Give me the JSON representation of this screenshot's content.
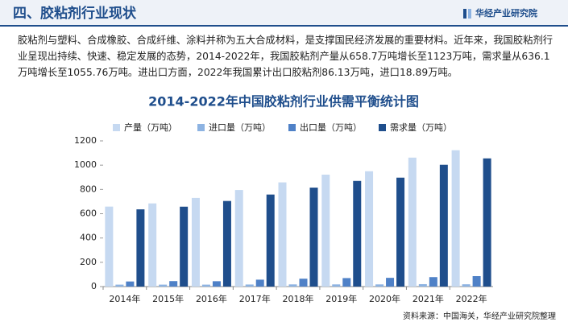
{
  "header": {
    "title": "四、胶粘剂行业现状",
    "logo": "华经产业研究院"
  },
  "paragraph": "胶粘剂与塑料、合成橡胶、合成纤维、涂料并称为五大合成材料，是支撑国民经济发展的重要材料。近年来，我国胶粘剂行业呈现出持续、快速、稳定发展的态势，2014-2022年，我国胶粘剂产量从658.7万吨增长至1123万吨，需求量从636.1万吨增长至1055.76万吨。进出口方面，2022年我国累计出口胶粘剂86.13万吨，进口18.89万吨。",
  "chart_data": {
    "type": "bar",
    "title": "2014-2022年中国胶粘剂行业供需平衡统计图",
    "categories": [
      "2014年",
      "2015年",
      "2016年",
      "2017年",
      "2018年",
      "2019年",
      "2020年",
      "2021年",
      "2022年"
    ],
    "series": [
      {
        "name": "产量（万吨）",
        "color": "#c6d9f1",
        "values": [
          658.7,
          685,
          730,
          795,
          858,
          922,
          950,
          1062,
          1123
        ]
      },
      {
        "name": "进口量（万吨）",
        "color": "#8db3e2",
        "values": [
          16,
          16,
          16,
          17,
          18,
          18,
          18,
          20,
          18.89
        ]
      },
      {
        "name": "出口量（万吨）",
        "color": "#4f81c7",
        "values": [
          42,
          45,
          44,
          57,
          65,
          70,
          72,
          78,
          86.13
        ]
      },
      {
        "name": "需求量（万吨）",
        "color": "#1f4e8c",
        "values": [
          636.1,
          658,
          705,
          758,
          815,
          870,
          897,
          1003,
          1055.76
        ]
      }
    ],
    "ylim": [
      0,
      1200
    ],
    "yticks": [
      0,
      200,
      400,
      600,
      800,
      1000,
      1200
    ]
  },
  "source": "资料来源：中国海关，华经产业研究院整理"
}
